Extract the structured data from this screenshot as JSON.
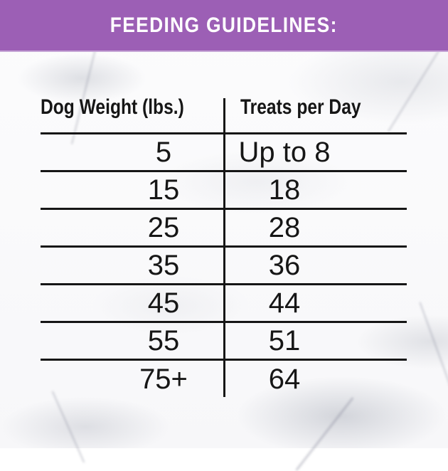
{
  "banner": {
    "title": "FEEDING GUIDELINES:",
    "background_color": "#9c5fb5",
    "edge_color": "#c5a5d5",
    "text_color": "#ffffff"
  },
  "table": {
    "columns": [
      "Dog Weight (lbs.)",
      "Treats per Day"
    ],
    "rows": [
      {
        "weight": "5",
        "treats": "Up to 8"
      },
      {
        "weight": "15",
        "treats": "18"
      },
      {
        "weight": "25",
        "treats": "28"
      },
      {
        "weight": "35",
        "treats": "36"
      },
      {
        "weight": "45",
        "treats": "44"
      },
      {
        "weight": "55",
        "treats": "51"
      },
      {
        "weight": "75+",
        "treats": "64"
      }
    ],
    "line_color": "#161616",
    "text_color": "#161616"
  },
  "chart_data": {
    "type": "table",
    "title": "FEEDING GUIDELINES:",
    "columns": [
      "Dog Weight (lbs.)",
      "Treats per Day"
    ],
    "rows": [
      [
        "5",
        "Up to 8"
      ],
      [
        "15",
        "18"
      ],
      [
        "25",
        "28"
      ],
      [
        "35",
        "36"
      ],
      [
        "45",
        "44"
      ],
      [
        "55",
        "51"
      ],
      [
        "75+",
        "64"
      ]
    ]
  }
}
